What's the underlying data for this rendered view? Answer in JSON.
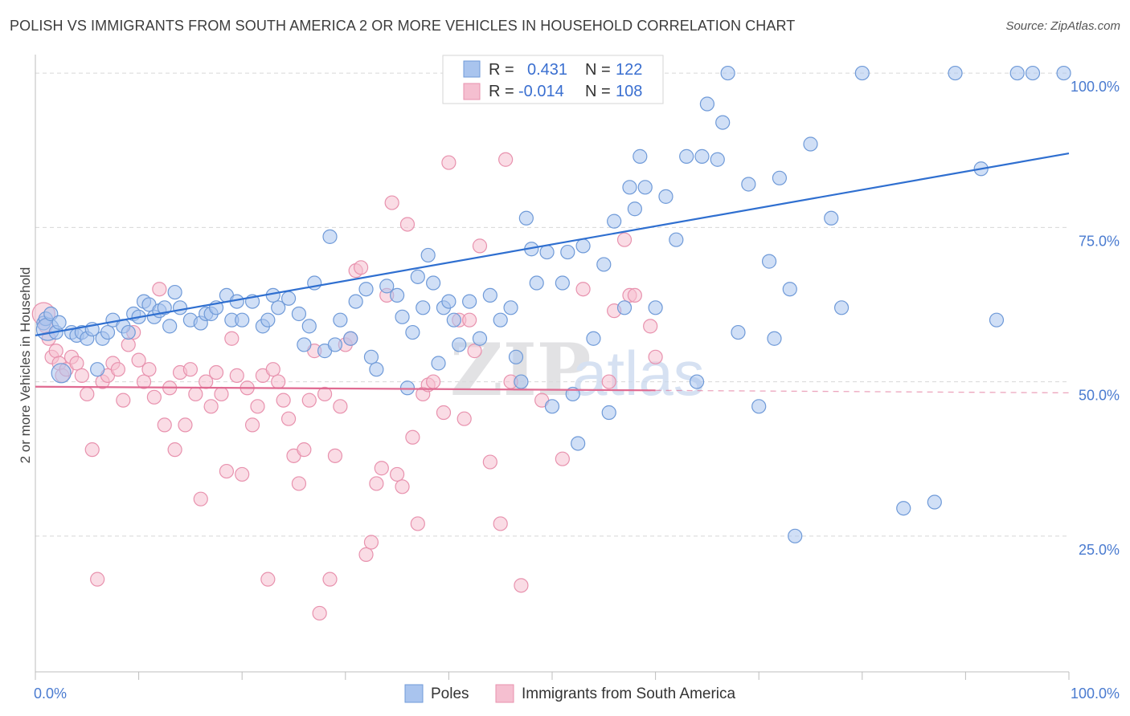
{
  "title": "POLISH VS IMMIGRANTS FROM SOUTH AMERICA 2 OR MORE VEHICLES IN HOUSEHOLD CORRELATION CHART",
  "source": "Source: ZipAtlas.com",
  "watermark": {
    "zip": "ZIP",
    "atlas": "atlas"
  },
  "legend": {
    "poles": {
      "r_label": "R =",
      "r_value": "0.431",
      "n_label": "N =",
      "n_value": "122"
    },
    "immigrants": {
      "r_label": "R =",
      "r_value": "-0.014",
      "n_label": "N =",
      "n_value": "108"
    }
  },
  "colors": {
    "poles_fill": "#a9c4ee",
    "poles_stroke": "#6f9ad8",
    "poles_line": "#2f6fd0",
    "immigrants_fill": "#f5bfd0",
    "immigrants_stroke": "#e892ae",
    "immigrants_line": "#e06b92",
    "grid": "#d8d8d8",
    "axis_text": "#4a7bd0"
  },
  "chart_data": {
    "type": "scatter",
    "title": "POLISH VS IMMIGRANTS FROM SOUTH AMERICA 2 OR MORE VEHICLES IN HOUSEHOLD CORRELATION CHART",
    "xlabel": "",
    "ylabel": "2 or more Vehicles in Household",
    "xlim": [
      0,
      100
    ],
    "ylim": [
      3,
      103
    ],
    "x_tick_labels": [
      "0.0%",
      "100.0%"
    ],
    "y_ticks": [
      25,
      50,
      75,
      100
    ],
    "y_tick_labels": [
      "25.0%",
      "50.0%",
      "75.0%",
      "100.0%"
    ],
    "grid": true,
    "legend_position": "top-center",
    "series": [
      {
        "name": "Poles",
        "trend": {
          "x0": 0,
          "y0": 57.5,
          "x1": 100,
          "y1": 87
        },
        "points": [
          [
            0.8,
            59.5
          ],
          [
            1.0,
            60.2
          ],
          [
            1.2,
            58.5
          ],
          [
            1.5,
            61
          ],
          [
            2.0,
            58
          ],
          [
            2.3,
            59.6
          ],
          [
            2.5,
            51.4
          ],
          [
            3.5,
            58
          ],
          [
            4.0,
            57.5
          ],
          [
            4.5,
            58
          ],
          [
            5.0,
            57
          ],
          [
            5.5,
            58.5
          ],
          [
            6.0,
            52
          ],
          [
            6.5,
            57
          ],
          [
            7.0,
            58
          ],
          [
            7.5,
            60
          ],
          [
            8.5,
            59
          ],
          [
            9.0,
            58
          ],
          [
            9.5,
            61
          ],
          [
            10.0,
            60.5
          ],
          [
            10.5,
            63
          ],
          [
            11.0,
            62.5
          ],
          [
            11.5,
            60.5
          ],
          [
            12.0,
            61.5
          ],
          [
            12.5,
            62
          ],
          [
            13.0,
            59
          ],
          [
            13.5,
            64.5
          ],
          [
            14.0,
            62
          ],
          [
            15.0,
            60
          ],
          [
            16.0,
            59.5
          ],
          [
            16.5,
            61
          ],
          [
            17.0,
            61
          ],
          [
            17.5,
            62
          ],
          [
            18.5,
            64
          ],
          [
            19.0,
            60
          ],
          [
            19.5,
            63
          ],
          [
            20.0,
            60
          ],
          [
            21.0,
            63
          ],
          [
            22.0,
            59
          ],
          [
            22.5,
            60
          ],
          [
            23.0,
            64
          ],
          [
            23.5,
            62
          ],
          [
            24.5,
            63.5
          ],
          [
            25.5,
            61
          ],
          [
            26.0,
            56
          ],
          [
            26.5,
            59
          ],
          [
            27.0,
            66
          ],
          [
            28.0,
            55
          ],
          [
            28.5,
            73.5
          ],
          [
            29.0,
            56
          ],
          [
            29.5,
            60
          ],
          [
            30.5,
            57
          ],
          [
            31.0,
            63
          ],
          [
            32.0,
            65
          ],
          [
            32.5,
            54
          ],
          [
            33.0,
            52
          ],
          [
            34.0,
            65.5
          ],
          [
            35.0,
            64
          ],
          [
            35.5,
            60.5
          ],
          [
            36.0,
            49
          ],
          [
            36.5,
            58
          ],
          [
            37.0,
            67
          ],
          [
            37.5,
            62
          ],
          [
            38.0,
            70.5
          ],
          [
            38.5,
            66
          ],
          [
            39.0,
            53
          ],
          [
            39.5,
            62
          ],
          [
            40.0,
            63
          ],
          [
            40.5,
            60
          ],
          [
            41.0,
            56
          ],
          [
            42.0,
            63
          ],
          [
            43.0,
            57
          ],
          [
            44.0,
            64
          ],
          [
            45.0,
            60
          ],
          [
            46.0,
            62
          ],
          [
            46.5,
            54
          ],
          [
            47.0,
            50
          ],
          [
            47.5,
            76.5
          ],
          [
            48.0,
            71.5
          ],
          [
            48.5,
            66
          ],
          [
            49.5,
            71
          ],
          [
            50.0,
            46
          ],
          [
            51.0,
            66
          ],
          [
            51.5,
            71
          ],
          [
            52.0,
            48
          ],
          [
            52.5,
            40
          ],
          [
            53.0,
            72
          ],
          [
            54.0,
            57
          ],
          [
            55.0,
            69
          ],
          [
            55.5,
            45
          ],
          [
            56.0,
            76
          ],
          [
            57.0,
            62
          ],
          [
            57.5,
            81.5
          ],
          [
            58.0,
            78
          ],
          [
            58.5,
            86.5
          ],
          [
            59.0,
            81.5
          ],
          [
            60.0,
            62
          ],
          [
            61.0,
            80
          ],
          [
            62.0,
            73
          ],
          [
            63.0,
            86.5
          ],
          [
            64.0,
            50
          ],
          [
            64.5,
            86.5
          ],
          [
            65.0,
            95
          ],
          [
            66.0,
            86
          ],
          [
            66.5,
            92
          ],
          [
            67.0,
            100
          ],
          [
            68.0,
            58
          ],
          [
            69.0,
            82
          ],
          [
            70.0,
            46
          ],
          [
            71.0,
            69.5
          ],
          [
            71.5,
            57
          ],
          [
            72.0,
            83
          ],
          [
            73.0,
            65
          ],
          [
            73.5,
            25
          ],
          [
            75.0,
            88.5
          ],
          [
            77.0,
            76.5
          ],
          [
            78.0,
            62
          ],
          [
            80.0,
            100
          ],
          [
            84.0,
            29.5
          ],
          [
            87.0,
            30.5
          ],
          [
            89.0,
            100
          ],
          [
            91.5,
            84.5
          ],
          [
            93.0,
            60
          ],
          [
            95.0,
            100
          ],
          [
            96.5,
            100
          ],
          [
            99.5,
            100
          ]
        ]
      },
      {
        "name": "Immigrants from South America",
        "trend": {
          "x0": 0,
          "y0": 49.2,
          "x1": 60,
          "y1": 48.6
        },
        "trend_dashed": {
          "x0": 60,
          "y0": 48.6,
          "x1": 100,
          "y1": 48.2
        },
        "points": [
          [
            0.8,
            61
          ],
          [
            1.0,
            59
          ],
          [
            1.3,
            57
          ],
          [
            1.6,
            54
          ],
          [
            2.0,
            55
          ],
          [
            2.3,
            53
          ],
          [
            2.6,
            51
          ],
          [
            3.0,
            52
          ],
          [
            3.5,
            54
          ],
          [
            4.0,
            53
          ],
          [
            4.5,
            51
          ],
          [
            5.0,
            48
          ],
          [
            5.5,
            39
          ],
          [
            6.0,
            18
          ],
          [
            6.5,
            50
          ],
          [
            7.0,
            51
          ],
          [
            7.5,
            53
          ],
          [
            8.0,
            52
          ],
          [
            8.5,
            47
          ],
          [
            9.0,
            56
          ],
          [
            9.5,
            58
          ],
          [
            10.0,
            53.5
          ],
          [
            10.5,
            50
          ],
          [
            11.0,
            52
          ],
          [
            11.5,
            47.5
          ],
          [
            12.0,
            65
          ],
          [
            12.5,
            43
          ],
          [
            13.0,
            49
          ],
          [
            13.5,
            39
          ],
          [
            14.0,
            51.5
          ],
          [
            14.5,
            43
          ],
          [
            15.0,
            52
          ],
          [
            15.5,
            48
          ],
          [
            16.0,
            31
          ],
          [
            16.5,
            50
          ],
          [
            17.0,
            46
          ],
          [
            17.5,
            51.5
          ],
          [
            18.0,
            48
          ],
          [
            18.5,
            35.5
          ],
          [
            19.0,
            57
          ],
          [
            19.5,
            51
          ],
          [
            20.0,
            35
          ],
          [
            20.5,
            49
          ],
          [
            21.0,
            43
          ],
          [
            21.5,
            46
          ],
          [
            22.0,
            51
          ],
          [
            22.5,
            18
          ],
          [
            23.0,
            52
          ],
          [
            23.5,
            50
          ],
          [
            24.0,
            47
          ],
          [
            24.5,
            44
          ],
          [
            25.0,
            38
          ],
          [
            25.5,
            33.5
          ],
          [
            26.0,
            39
          ],
          [
            26.5,
            47
          ],
          [
            27.0,
            55
          ],
          [
            27.5,
            12.5
          ],
          [
            28.0,
            48
          ],
          [
            28.5,
            18
          ],
          [
            29.0,
            38
          ],
          [
            29.5,
            46
          ],
          [
            30.0,
            56
          ],
          [
            30.5,
            57
          ],
          [
            31.0,
            68
          ],
          [
            31.5,
            68.5
          ],
          [
            32.0,
            22
          ],
          [
            32.5,
            24
          ],
          [
            33.0,
            33.5
          ],
          [
            33.5,
            36
          ],
          [
            34.0,
            64
          ],
          [
            34.5,
            79
          ],
          [
            35.0,
            35
          ],
          [
            35.5,
            33
          ],
          [
            36.0,
            75.5
          ],
          [
            36.5,
            41
          ],
          [
            37.0,
            27
          ],
          [
            37.5,
            48
          ],
          [
            38.0,
            49.5
          ],
          [
            38.5,
            50
          ],
          [
            39.5,
            45
          ],
          [
            40.0,
            85.5
          ],
          [
            41.0,
            60
          ],
          [
            41.5,
            44
          ],
          [
            42.0,
            60
          ],
          [
            42.5,
            55
          ],
          [
            43.0,
            72
          ],
          [
            44.0,
            37
          ],
          [
            45.0,
            27
          ],
          [
            45.5,
            86
          ],
          [
            46.0,
            50
          ],
          [
            47.0,
            17
          ],
          [
            49.0,
            47
          ],
          [
            51.0,
            37.5
          ],
          [
            53.0,
            65
          ],
          [
            55.5,
            50
          ],
          [
            56.0,
            61.5
          ],
          [
            57.0,
            73
          ],
          [
            57.5,
            64
          ],
          [
            58.0,
            64
          ],
          [
            59.5,
            59
          ],
          [
            60.0,
            54
          ]
        ]
      }
    ]
  }
}
